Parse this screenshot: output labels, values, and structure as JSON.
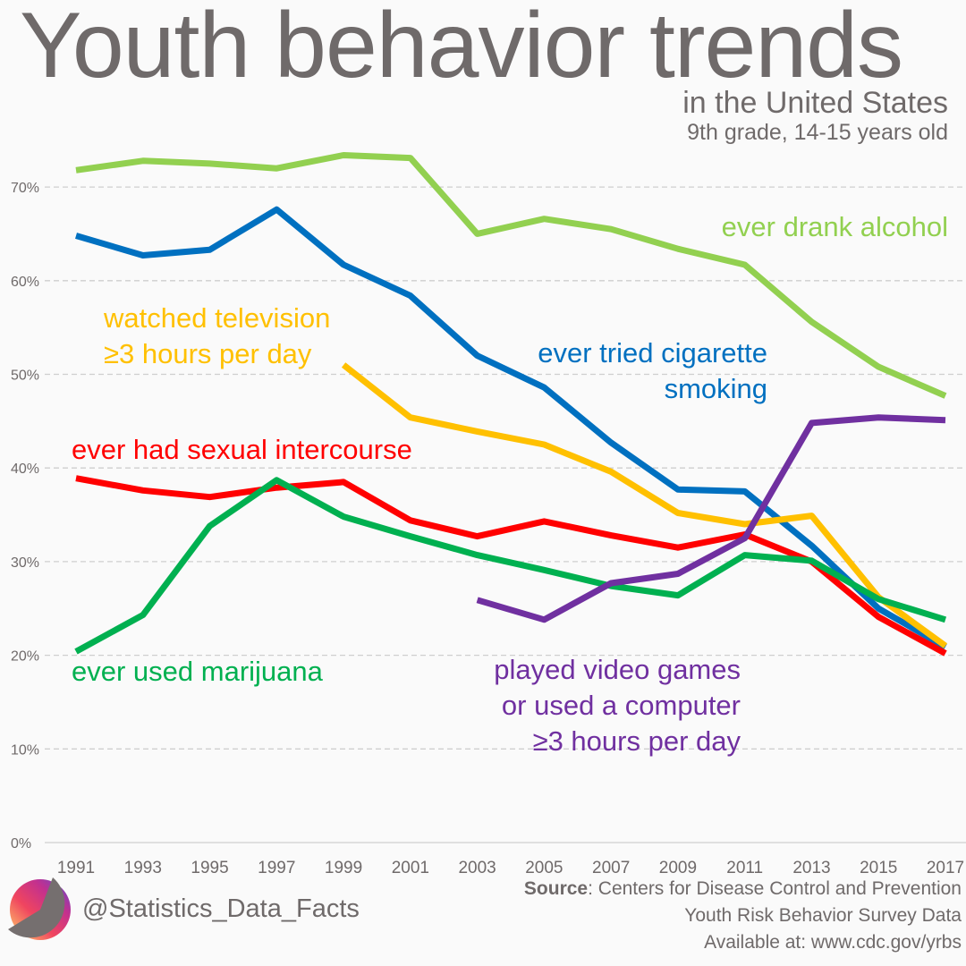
{
  "title": "Youth behavior trends",
  "subtitle1": "in the United States",
  "subtitle2": "9th grade, 14-15 years old",
  "handle": "@Statistics_Data_Facts",
  "source": {
    "label": "Source",
    "line1": ": Centers for Disease Control and Prevention",
    "line2": "Youth Risk Behavior Survey Data",
    "line3": "Available at: www.cdc.gov/yrbs"
  },
  "chart_data": {
    "type": "line",
    "x": [
      1991,
      1993,
      1995,
      1997,
      1999,
      2001,
      2003,
      2005,
      2007,
      2009,
      2011,
      2013,
      2015,
      2017
    ],
    "ylim": [
      0,
      70
    ],
    "yticks": [
      "0%",
      "10%",
      "20%",
      "30%",
      "40%",
      "50%",
      "60%",
      "70%"
    ],
    "grid": true,
    "series": [
      {
        "name": "ever drank alcohol",
        "label": [
          "ever drank alcohol"
        ],
        "color": "#92d050",
        "values": [
          71.8,
          72.8,
          72.5,
          72.0,
          73.4,
          73.1,
          65.0,
          66.6,
          65.5,
          63.4,
          61.7,
          55.6,
          50.8,
          47.7
        ]
      },
      {
        "name": "ever tried cigarette smoking",
        "label": [
          "ever tried cigarette",
          "smoking"
        ],
        "color": "#0070c0",
        "values": [
          64.8,
          62.7,
          63.3,
          67.6,
          61.7,
          58.4,
          52.0,
          48.6,
          42.7,
          37.7,
          37.5,
          31.7,
          25.0,
          20.9
        ]
      },
      {
        "name": "watched television ≥3 hours per day",
        "label": [
          "watched television",
          "≥3 hours per day"
        ],
        "color": "#ffc000",
        "values": [
          null,
          null,
          null,
          null,
          51.0,
          45.4,
          43.9,
          42.5,
          39.6,
          35.2,
          34.0,
          34.9,
          26.2,
          21.0
        ]
      },
      {
        "name": "ever had sexual intercourse",
        "label": [
          "ever had sexual intercourse"
        ],
        "color": "#ff0000",
        "values": [
          38.9,
          37.6,
          36.9,
          37.9,
          38.5,
          34.4,
          32.7,
          34.3,
          32.8,
          31.5,
          32.9,
          30.0,
          24.1,
          20.2
        ]
      },
      {
        "name": "ever used marijuana",
        "label": [
          "ever used marijuana"
        ],
        "color": "#00b050",
        "values": [
          20.4,
          24.3,
          33.8,
          38.7,
          34.8,
          32.7,
          30.7,
          29.1,
          27.4,
          26.4,
          30.7,
          30.1,
          26.0,
          23.8
        ]
      },
      {
        "name": "played video games or used a computer ≥3 hours per day",
        "label": [
          "played video games",
          "or used a computer",
          "≥3 hours per day"
        ],
        "color": "#7030a0",
        "values": [
          null,
          null,
          null,
          null,
          null,
          null,
          25.9,
          23.8,
          27.7,
          28.7,
          32.5,
          44.8,
          45.4,
          45.1
        ]
      }
    ]
  }
}
